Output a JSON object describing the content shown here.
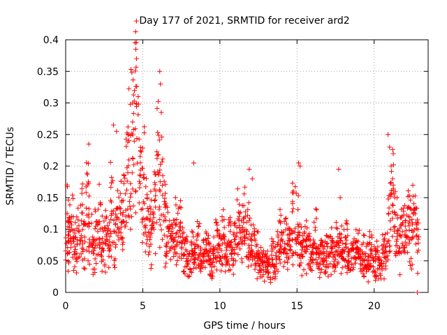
{
  "chart_data": {
    "type": "scatter",
    "title": "Day 177 of 2021, SRMTID for receiver ard2",
    "xlabel": "GPS time / hours",
    "ylabel": "SRMTID / TECUs",
    "xlim": [
      0,
      23.5
    ],
    "ylim": [
      0,
      0.4
    ],
    "x_ticks": [
      0,
      5,
      10,
      15,
      20
    ],
    "x_tick_labels": [
      "0",
      "5",
      "10",
      "15",
      "20"
    ],
    "y_ticks": [
      0,
      0.05,
      0.1,
      0.15,
      0.2,
      0.25,
      0.3,
      0.35,
      0.4
    ],
    "y_tick_labels": [
      "0",
      "0.05",
      "0.1",
      "0.15",
      "0.2",
      "0.25",
      "0.3",
      "0.35",
      "0.4"
    ],
    "grid": true,
    "marker": "+",
    "color": "#ff0000",
    "series": [
      {
        "name": "SRMTID",
        "x": [
          0.1,
          0.2,
          0.4,
          0.6,
          0.8,
          1.0,
          1.2,
          1.4,
          1.6,
          1.8,
          2.0,
          2.2,
          2.4,
          2.6,
          2.8,
          3.0,
          3.2,
          3.4,
          3.6,
          3.8,
          4.0,
          4.2,
          4.4,
          4.6,
          4.8,
          5.0,
          5.2,
          5.4,
          5.6,
          5.8,
          6.0,
          6.2,
          6.4,
          6.6,
          6.8,
          7.0,
          7.2,
          7.4,
          7.6,
          7.8,
          8.0,
          8.2,
          8.4,
          8.6,
          8.8,
          9.0,
          9.2,
          9.4,
          9.6,
          9.8,
          10.0,
          10.2,
          10.4,
          10.6,
          10.8,
          11.0,
          11.2,
          11.4,
          11.6,
          11.8,
          12.0,
          12.2,
          12.4,
          12.6,
          12.8,
          13.0,
          13.2,
          13.4,
          13.6,
          13.8,
          14.0,
          14.2,
          14.4,
          14.6,
          14.8,
          15.0,
          15.2,
          15.4,
          15.6,
          15.8,
          16.0,
          16.2,
          16.4,
          16.6,
          16.8,
          17.0,
          17.2,
          17.4,
          17.6,
          17.8,
          18.0,
          18.2,
          18.4,
          18.6,
          18.8,
          19.0,
          19.2,
          19.4,
          19.6,
          19.8,
          20.0,
          20.2,
          20.4,
          20.6,
          20.8,
          21.0,
          21.2,
          21.4,
          21.6,
          21.8,
          22.0,
          22.2,
          22.4,
          22.6,
          22.8
        ],
        "y": [
          0.08,
          0.12,
          0.1,
          0.07,
          0.09,
          0.11,
          0.08,
          0.14,
          0.1,
          0.06,
          0.09,
          0.12,
          0.08,
          0.1,
          0.07,
          0.13,
          0.09,
          0.11,
          0.12,
          0.15,
          0.18,
          0.22,
          0.25,
          0.3,
          0.2,
          0.16,
          0.12,
          0.09,
          0.1,
          0.15,
          0.2,
          0.16,
          0.12,
          0.1,
          0.09,
          0.08,
          0.1,
          0.09,
          0.07,
          0.06,
          0.05,
          0.07,
          0.06,
          0.08,
          0.05,
          0.06,
          0.07,
          0.05,
          0.06,
          0.08,
          0.07,
          0.09,
          0.06,
          0.08,
          0.07,
          0.08,
          0.1,
          0.09,
          0.12,
          0.1,
          0.08,
          0.07,
          0.06,
          0.05,
          0.04,
          0.05,
          0.04,
          0.06,
          0.05,
          0.07,
          0.08,
          0.09,
          0.07,
          0.1,
          0.12,
          0.1,
          0.08,
          0.07,
          0.08,
          0.06,
          0.07,
          0.08,
          0.06,
          0.07,
          0.05,
          0.06,
          0.07,
          0.06,
          0.08,
          0.07,
          0.06,
          0.07,
          0.05,
          0.06,
          0.07,
          0.06,
          0.05,
          0.06,
          0.05,
          0.06,
          0.05,
          0.05,
          0.04,
          0.06,
          0.07,
          0.12,
          0.15,
          0.1,
          0.08,
          0.1,
          0.09,
          0.11,
          0.1,
          0.12,
          0.09
        ],
        "outliers": {
          "x": [
            0.1,
            1.5,
            3.1,
            3.3,
            4.5,
            4.55,
            4.6,
            4.7,
            6.1,
            6.15,
            6.2,
            8.3,
            11.9,
            12.1,
            15.1,
            15.2,
            17.7,
            17.8,
            20.9,
            21.0,
            21.1,
            21.2
          ],
          "y": [
            0.17,
            0.235,
            0.265,
            0.255,
            0.395,
            0.385,
            0.37,
            0.31,
            0.35,
            0.33,
            0.285,
            0.205,
            0.195,
            0.18,
            0.205,
            0.2,
            0.195,
            0.15,
            0.25,
            0.23,
            0.2,
            0.18
          ]
        }
      }
    ]
  }
}
